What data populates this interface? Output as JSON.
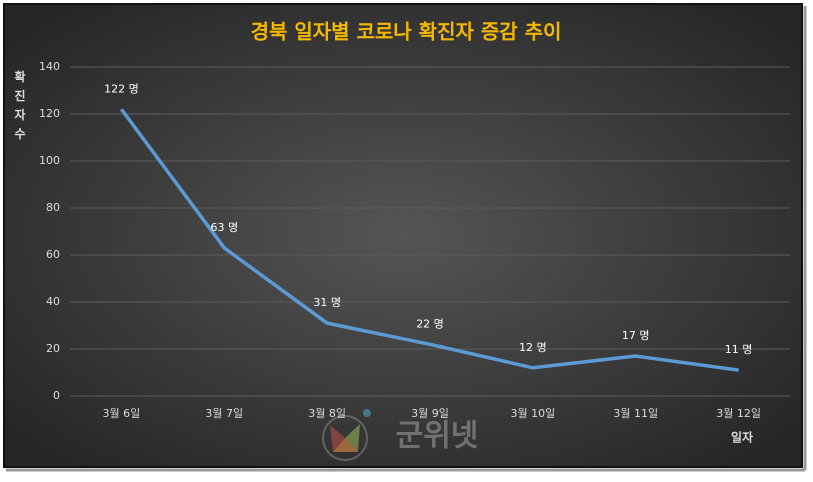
{
  "chart_data": {
    "type": "line",
    "title": "경북 일자별 코로나 확진자 증감 추이",
    "y_label": "확진자수",
    "x_label": "일자",
    "categories": [
      "3월 6일",
      "3월 7일",
      "3월 8일",
      "3월 9일",
      "3월 10일",
      "3월 11일",
      "3월 12일"
    ],
    "values": [
      122,
      63,
      31,
      22,
      12,
      17,
      11
    ],
    "value_labels": [
      "122 명",
      "63 명",
      "31 명",
      "22 명",
      "12 명",
      "17 명",
      "11 명"
    ],
    "color": "#5b9bd5",
    "ylim": [
      0,
      140
    ],
    "yticks": [
      0,
      20,
      40,
      60,
      80,
      100,
      120,
      140
    ],
    "grid": true,
    "watermark": "군위넷"
  }
}
